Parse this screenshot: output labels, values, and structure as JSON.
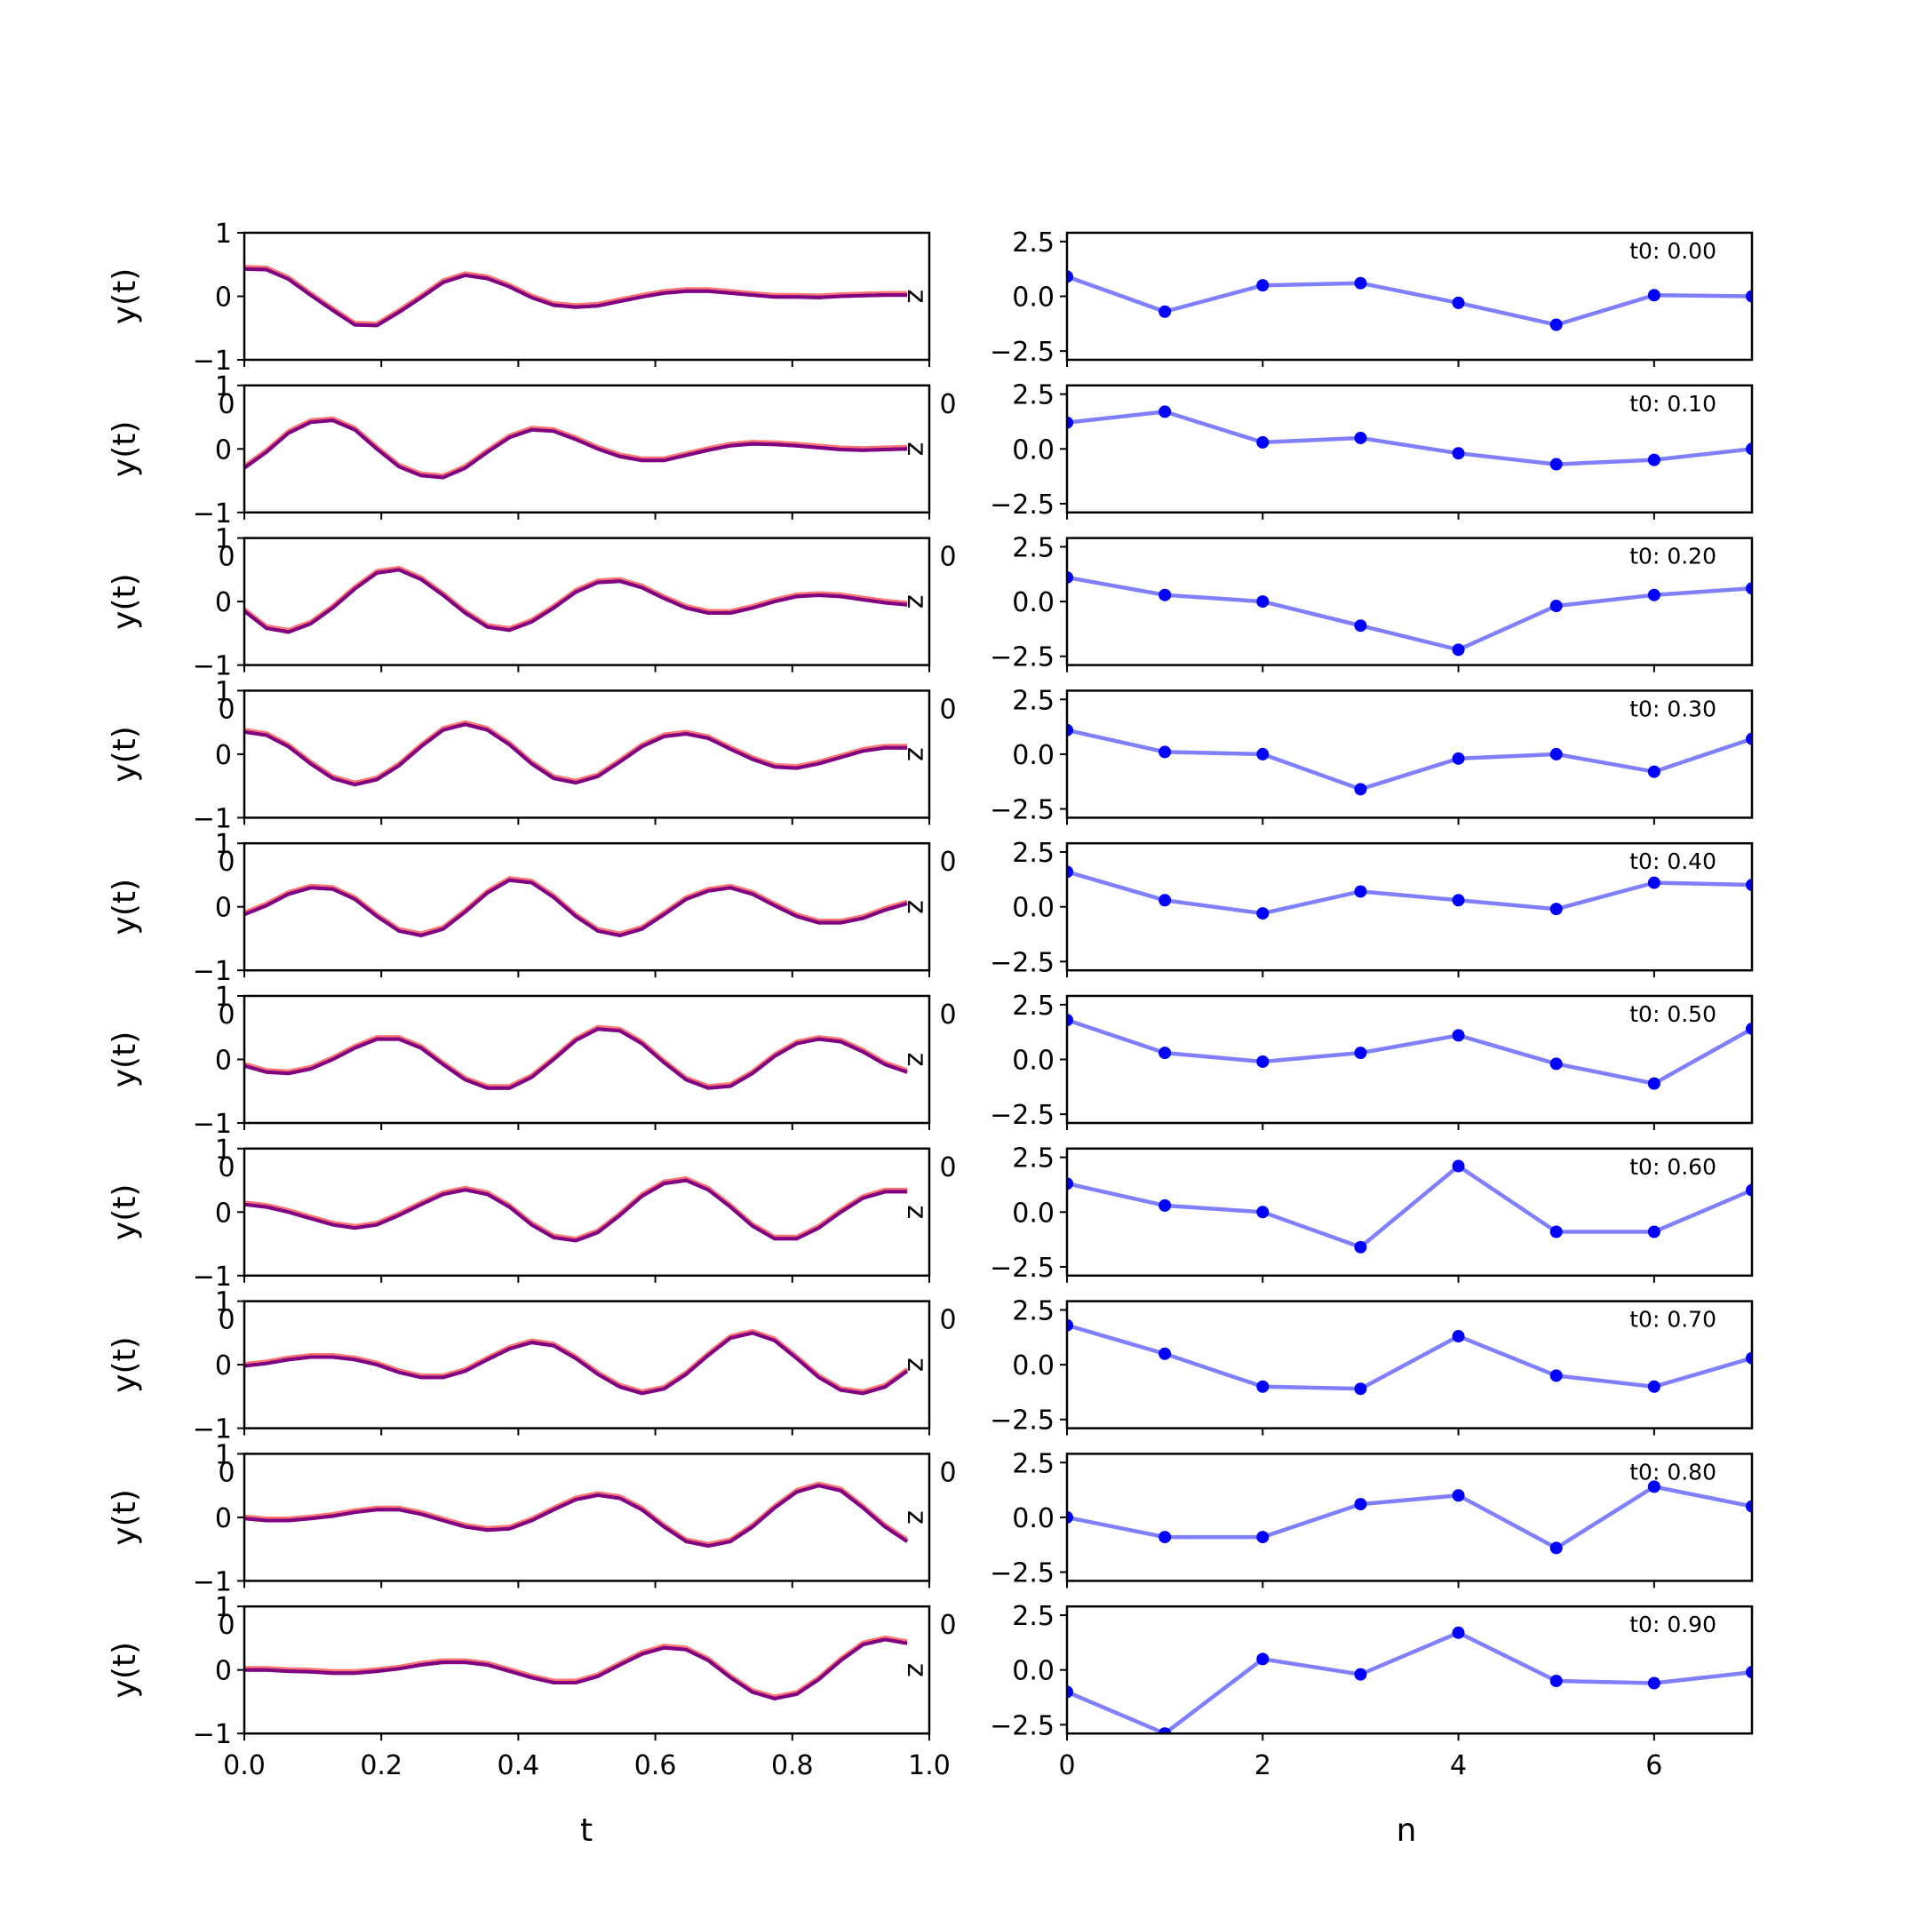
{
  "chart_data": {
    "type": "line",
    "colors": {
      "true_series": "#0000ff",
      "pred_series": "#ff0000",
      "z_series": "#0000ff"
    },
    "left": {
      "ylabel": "y(t)",
      "xlabel": "t",
      "xlim": [
        0.0,
        1.0
      ],
      "ylim": [
        -1,
        1
      ],
      "xticks": [
        "0.0",
        "0.2",
        "0.4",
        "0.6",
        "0.8",
        "1.0"
      ],
      "yticks": [
        "1",
        "0",
        "−1"
      ],
      "overlap_tick": "0",
      "right_axis_label": "z",
      "t": [
        0.0,
        0.0323,
        0.0645,
        0.0968,
        0.129,
        0.1613,
        0.1935,
        0.2258,
        0.2581,
        0.2903,
        0.3226,
        0.3548,
        0.3871,
        0.4194,
        0.4516,
        0.4839,
        0.5161,
        0.5484,
        0.5806,
        0.6129,
        0.6452,
        0.6774,
        0.7097,
        0.7419,
        0.7742,
        0.8065,
        0.8387,
        0.871,
        0.9032,
        0.9355,
        0.9677
      ]
    },
    "right": {
      "xlabel": "n",
      "xlim": [
        0,
        7
      ],
      "ylim": [
        -2.9,
        2.9
      ],
      "xticks": [
        "0",
        "2",
        "4",
        "6"
      ],
      "yticks": [
        "2.5",
        "0.0",
        "−2.5"
      ],
      "n": [
        0,
        1,
        2,
        3,
        4,
        5,
        6,
        7
      ]
    },
    "rows": [
      {
        "t0": "t0: 0.00",
        "y": [
          0.43,
          0.42,
          0.27,
          0.02,
          -0.22,
          -0.45,
          -0.46,
          -0.25,
          -0.02,
          0.22,
          0.33,
          0.28,
          0.15,
          -0.02,
          -0.14,
          -0.17,
          -0.15,
          -0.08,
          -0.01,
          0.05,
          0.08,
          0.08,
          0.05,
          0.02,
          -0.01,
          -0.01,
          -0.02,
          0.0,
          0.01,
          0.02,
          0.02
        ],
        "z": [
          0.9,
          -0.7,
          0.5,
          0.6,
          -0.3,
          -1.3,
          0.05,
          0.0
        ]
      },
      {
        "t0": "t0: 0.10",
        "y": [
          -0.3,
          -0.05,
          0.25,
          0.42,
          0.45,
          0.3,
          0.0,
          -0.28,
          -0.42,
          -0.45,
          -0.3,
          -0.05,
          0.18,
          0.3,
          0.28,
          0.15,
          0.0,
          -0.12,
          -0.18,
          -0.18,
          -0.1,
          -0.02,
          0.05,
          0.08,
          0.07,
          0.05,
          0.02,
          -0.01,
          -0.02,
          -0.01,
          0.0
        ],
        "z": [
          1.2,
          1.7,
          0.3,
          0.5,
          -0.2,
          -0.7,
          -0.5,
          0.0
        ]
      },
      {
        "t0": "t0: 0.20",
        "y": [
          -0.15,
          -0.42,
          -0.48,
          -0.35,
          -0.1,
          0.2,
          0.45,
          0.5,
          0.35,
          0.1,
          -0.18,
          -0.4,
          -0.45,
          -0.32,
          -0.1,
          0.15,
          0.3,
          0.32,
          0.22,
          0.05,
          -0.1,
          -0.18,
          -0.18,
          -0.1,
          0.0,
          0.08,
          0.1,
          0.08,
          0.03,
          -0.02,
          -0.05
        ],
        "z": [
          1.1,
          0.3,
          0.0,
          -1.1,
          -2.2,
          -0.2,
          0.3,
          0.6
        ]
      },
      {
        "t0": "t0: 0.30",
        "y": [
          0.35,
          0.3,
          0.12,
          -0.15,
          -0.38,
          -0.48,
          -0.4,
          -0.18,
          0.12,
          0.38,
          0.47,
          0.38,
          0.15,
          -0.15,
          -0.38,
          -0.45,
          -0.35,
          -0.12,
          0.12,
          0.28,
          0.32,
          0.25,
          0.08,
          -0.08,
          -0.2,
          -0.22,
          -0.15,
          -0.05,
          0.05,
          0.1,
          0.1
        ],
        "z": [
          1.1,
          0.1,
          0.0,
          -1.6,
          -0.2,
          0.0,
          -0.8,
          0.7
        ]
      },
      {
        "t0": "t0: 0.40",
        "y": [
          -0.12,
          0.02,
          0.2,
          0.3,
          0.28,
          0.12,
          -0.15,
          -0.38,
          -0.45,
          -0.35,
          -0.08,
          0.22,
          0.42,
          0.38,
          0.15,
          -0.15,
          -0.38,
          -0.45,
          -0.35,
          -0.12,
          0.12,
          0.25,
          0.3,
          0.2,
          0.02,
          -0.15,
          -0.25,
          -0.25,
          -0.18,
          -0.05,
          0.05
        ],
        "z": [
          1.6,
          0.3,
          -0.3,
          0.7,
          0.3,
          -0.1,
          1.1,
          1.0
        ]
      },
      {
        "t0": "t0: 0.50",
        "y": [
          -0.1,
          -0.2,
          -0.22,
          -0.15,
          0.0,
          0.18,
          0.32,
          0.32,
          0.18,
          -0.08,
          -0.32,
          -0.45,
          -0.45,
          -0.28,
          0.0,
          0.3,
          0.48,
          0.45,
          0.25,
          -0.05,
          -0.32,
          -0.45,
          -0.42,
          -0.22,
          0.05,
          0.25,
          0.32,
          0.28,
          0.12,
          -0.08,
          -0.2
        ],
        "z": [
          1.8,
          0.3,
          -0.1,
          0.3,
          1.1,
          -0.2,
          -1.1,
          1.4
        ]
      },
      {
        "t0": "t0: 0.60",
        "y": [
          0.12,
          0.08,
          0.0,
          -0.1,
          -0.2,
          -0.25,
          -0.2,
          -0.05,
          0.12,
          0.28,
          0.35,
          0.28,
          0.08,
          -0.2,
          -0.4,
          -0.45,
          -0.32,
          -0.05,
          0.25,
          0.45,
          0.5,
          0.35,
          0.08,
          -0.22,
          -0.42,
          -0.42,
          -0.25,
          0.0,
          0.22,
          0.32,
          0.32
        ],
        "z": [
          1.3,
          0.3,
          0.0,
          -1.6,
          2.1,
          -0.9,
          -0.9,
          1.0
        ]
      },
      {
        "t0": "t0: 0.70",
        "y": [
          -0.02,
          0.02,
          0.08,
          0.12,
          0.12,
          0.08,
          0.0,
          -0.12,
          -0.2,
          -0.2,
          -0.1,
          0.08,
          0.25,
          0.35,
          0.3,
          0.1,
          -0.15,
          -0.35,
          -0.45,
          -0.38,
          -0.15,
          0.15,
          0.42,
          0.5,
          0.38,
          0.1,
          -0.2,
          -0.4,
          -0.45,
          -0.35,
          -0.1
        ],
        "z": [
          1.8,
          0.5,
          -1.0,
          -1.1,
          1.3,
          -0.5,
          -1.0,
          0.3
        ]
      },
      {
        "t0": "t0: 0.80",
        "y": [
          -0.02,
          -0.05,
          -0.05,
          -0.02,
          0.02,
          0.08,
          0.12,
          0.12,
          0.05,
          -0.05,
          -0.15,
          -0.2,
          -0.18,
          -0.05,
          0.12,
          0.28,
          0.35,
          0.3,
          0.12,
          -0.15,
          -0.38,
          -0.45,
          -0.38,
          -0.15,
          0.15,
          0.4,
          0.5,
          0.42,
          0.15,
          -0.15,
          -0.38
        ],
        "z": [
          0.0,
          -0.9,
          -0.9,
          0.6,
          1.0,
          -1.4,
          1.4,
          0.5
        ]
      },
      {
        "t0": "t0: 0.90",
        "y": [
          0.0,
          0.0,
          -0.02,
          -0.03,
          -0.05,
          -0.05,
          -0.02,
          0.02,
          0.08,
          0.12,
          0.12,
          0.08,
          -0.02,
          -0.12,
          -0.2,
          -0.2,
          -0.1,
          0.08,
          0.25,
          0.35,
          0.32,
          0.15,
          -0.12,
          -0.35,
          -0.45,
          -0.38,
          -0.15,
          0.15,
          0.4,
          0.48,
          0.42
        ],
        "z": [
          -1.0,
          -2.9,
          0.5,
          -0.2,
          1.7,
          -0.5,
          -0.6,
          -0.1
        ]
      }
    ]
  }
}
